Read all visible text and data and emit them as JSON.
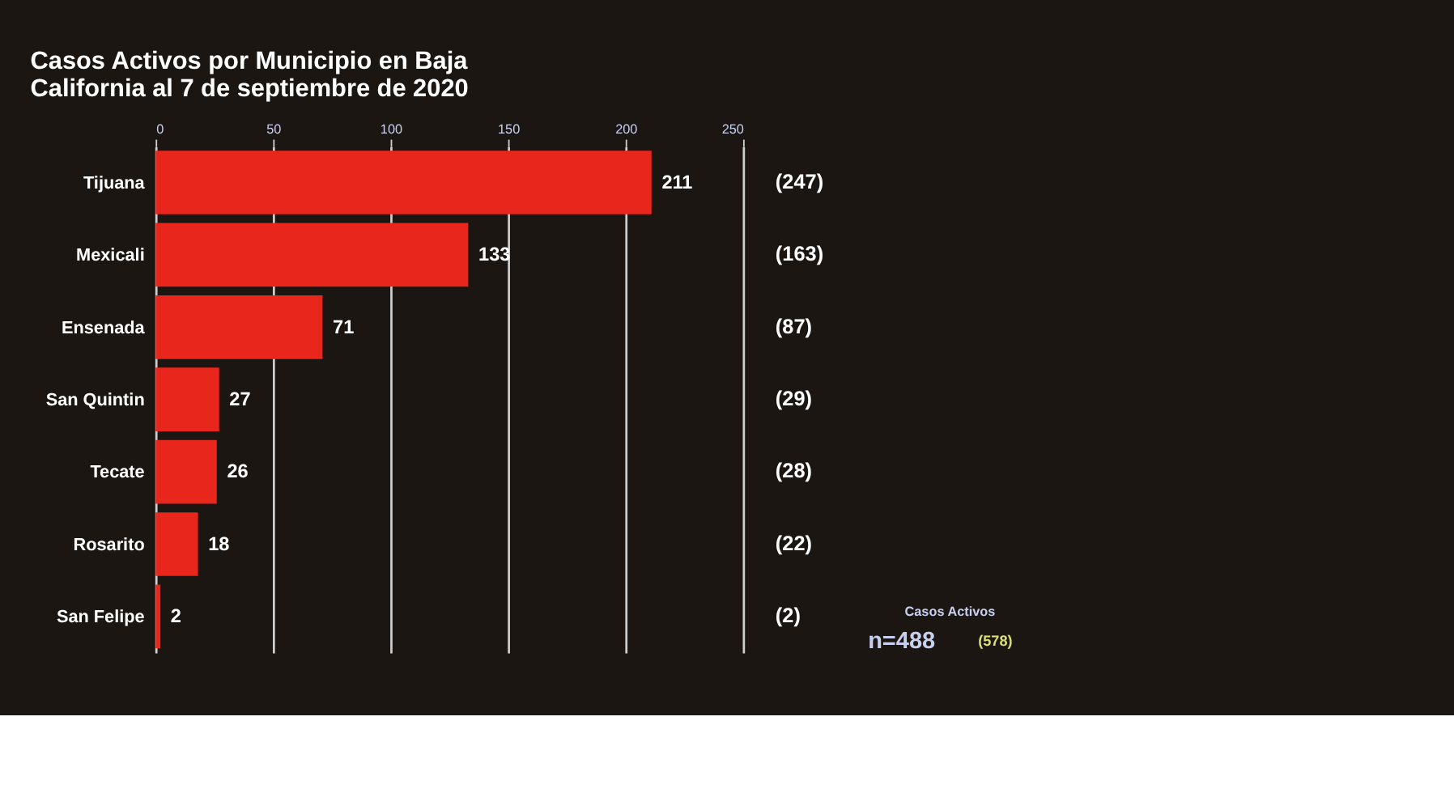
{
  "chart_data": {
    "type": "bar",
    "orientation": "horizontal",
    "title": [
      "Casos Activos por Municipio en Baja",
      "California al 7 de septiembre de 2020"
    ],
    "categories": [
      "Tijuana",
      "Mexicali",
      "Ensenada",
      "San Quintin",
      "Tecate",
      "Rosarito",
      "San Felipe"
    ],
    "values": [
      211,
      133,
      71,
      27,
      26,
      18,
      2
    ],
    "color": "#e8261c",
    "data_labels": true,
    "xlim": [
      0,
      250
    ],
    "xticks": [
      0,
      50,
      100,
      150,
      200,
      250
    ],
    "grid": "x",
    "annotations": [
      "(247)",
      "(163)",
      "(87)",
      "(29)",
      "(28)",
      "(22)",
      "(2)",
      "Casos Activos",
      "n=488",
      "(578)"
    ]
  }
}
